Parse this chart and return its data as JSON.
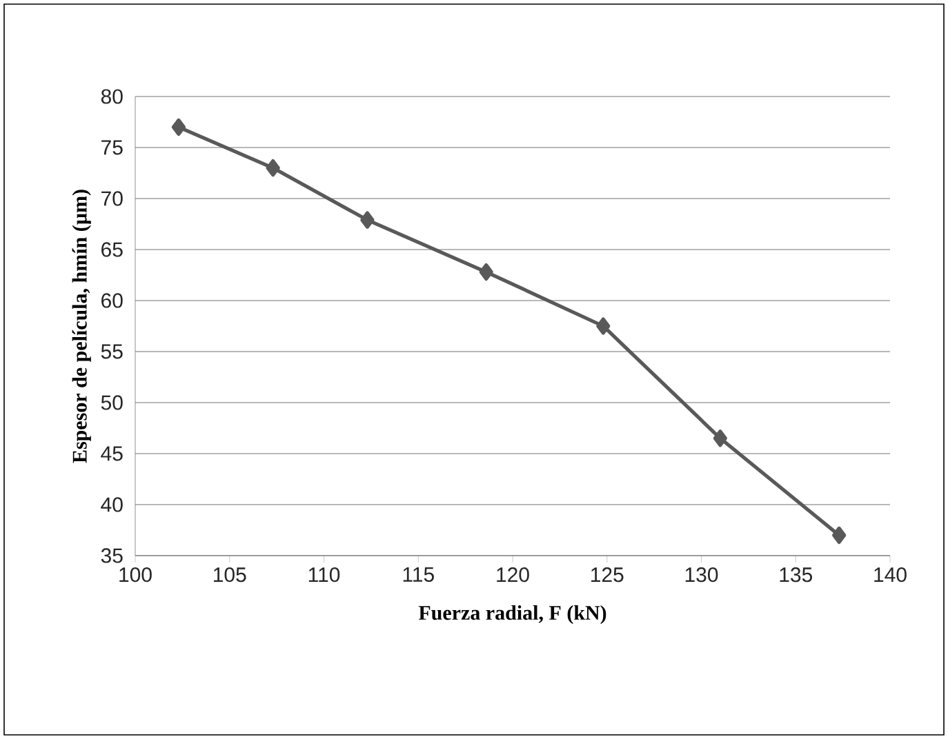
{
  "chart_data": {
    "type": "line",
    "xlabel": "Fuerza radial, F (kN)",
    "ylabel": "Espesor de película, hmín (µm)",
    "x": [
      102.3,
      107.3,
      112.3,
      118.6,
      124.8,
      131.0,
      137.3
    ],
    "series": [
      {
        "color": "#595959",
        "values": [
          77.0,
          73.0,
          67.9,
          62.8,
          57.5,
          46.5,
          37.0
        ]
      }
    ],
    "xlim": [
      100,
      140
    ],
    "ylim": [
      35,
      80
    ],
    "xticks": [
      100,
      105,
      110,
      115,
      120,
      125,
      130,
      135,
      140
    ],
    "yticks": [
      35,
      40,
      45,
      50,
      55,
      60,
      65,
      70,
      75,
      80
    ],
    "grid": "y",
    "marker": "diamond",
    "line_style": "solid"
  }
}
